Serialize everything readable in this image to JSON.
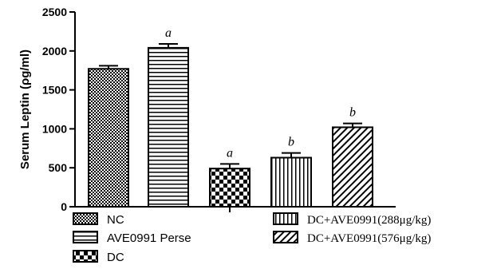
{
  "chart_data": {
    "type": "bar",
    "title": "",
    "xlabel": "",
    "ylabel": "Serum Leptin (ρg/ml)",
    "ylim": [
      0,
      2500
    ],
    "yticks": [
      0,
      500,
      1000,
      1500,
      2000,
      2500
    ],
    "grid": false,
    "legend_position": "bottom",
    "categories": [
      "NC",
      "AVE0991 Perse",
      "DC",
      "DC+AVE0991(288μg/kg)",
      "DC+AVE0991(576μg/kg)"
    ],
    "values": [
      1770,
      2040,
      490,
      630,
      1020
    ],
    "errors": [
      40,
      50,
      60,
      60,
      50
    ],
    "significance": [
      "",
      "a",
      "a",
      "b",
      "b"
    ],
    "patterns": [
      "fine-checker",
      "horizontal-lines",
      "large-checker",
      "vertical-lines",
      "diagonal-lines"
    ]
  }
}
